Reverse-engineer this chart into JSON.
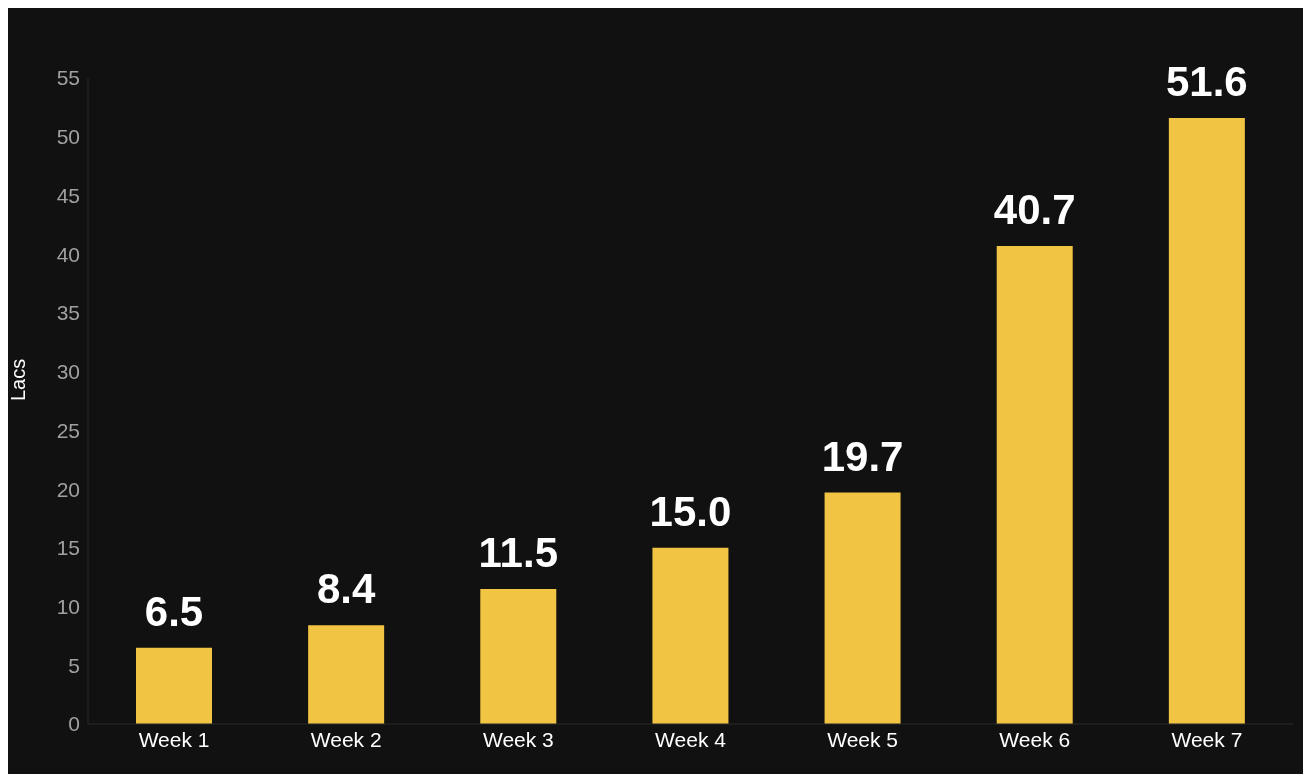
{
  "chart_data": {
    "type": "bar",
    "ylabel": "Lacs",
    "categories": [
      "Week 1",
      "Week 2",
      "Week 3",
      "Week 4",
      "Week 5",
      "Week 6",
      "Week 7"
    ],
    "values": [
      6.5,
      8.4,
      11.5,
      15.0,
      19.7,
      40.7,
      51.6
    ],
    "value_labels": [
      "6.5",
      "8.4",
      "11.5",
      "15.0",
      "19.7",
      "40.7",
      "51.6"
    ],
    "color": "#f2c443",
    "ylim": [
      0,
      55
    ],
    "yticks": [
      0,
      5,
      10,
      15,
      20,
      25,
      30,
      35,
      40,
      45,
      50,
      55
    ],
    "grid": false,
    "legend": false
  }
}
